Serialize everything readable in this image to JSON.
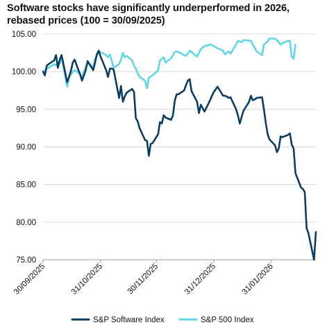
{
  "chart_data": {
    "type": "line",
    "title": "Software stocks have significantly underperformed in 2026, rebased prices (100 = 30/09/2025)",
    "xlabel": "",
    "ylabel": "",
    "ylim": [
      75,
      105
    ],
    "y_ticks": [
      "75.00",
      "80.00",
      "85.00",
      "90.00",
      "95.00",
      "100.00",
      "105.00"
    ],
    "x_tick_labels": [
      "30/09/2025",
      "31/10/2025",
      "30/11/2025",
      "31/12/2025",
      "31/01/2026"
    ],
    "x_tick_days": [
      0,
      31,
      61,
      92,
      123
    ],
    "grid": "horizontal",
    "legend_position": "bottom",
    "colors": {
      "software": "#0b3d63",
      "sp500": "#5fd6e6",
      "grid": "#d9d9d9",
      "axis": "#999999"
    },
    "series": [
      {
        "name": "S&P Software Index",
        "color": "#0b3d63",
        "values": [
          100.0,
          99.5,
          100.8,
          101.0,
          101.5,
          102.2,
          100.5,
          101.6,
          102.2,
          98.6,
          99.3,
          100.1,
          101.2,
          101.6,
          99.6,
          98.8,
          99.5,
          100.2,
          101.4,
          100.2,
          101.2,
          102.3,
          102.8,
          102.0,
          100.2,
          99.3,
          100.4,
          100.4,
          100.3,
          96.5,
          98.1,
          96.0,
          96.7,
          97.2,
          97.7,
          97.3,
          93.8,
          93.4,
          92.5,
          90.9,
          90.8,
          88.8,
          90.4,
          90.5,
          91.7,
          93.3,
          93.1,
          94.2,
          93.9,
          93.6,
          94.2,
          96.2,
          97.0,
          97.0,
          97.5,
          98.2,
          98.8,
          99.0,
          97.4,
          96.0,
          94.5,
          95.6,
          94.7,
          96.2,
          96.8,
          97.3,
          98.0,
          96.8,
          96.8,
          96.7,
          96.5,
          96.6,
          95.0,
          94.2,
          93.1,
          94.0,
          94.8,
          96.0,
          96.8,
          96.2,
          96.3,
          96.5,
          96.6,
          95.0,
          93.2,
          91.7,
          91.0,
          90.2,
          89.3,
          89.8,
          91.4,
          91.3,
          91.6,
          91.8,
          90.3,
          89.8,
          86.5,
          84.6,
          84.4,
          84.0,
          79.2,
          78.5,
          75.0,
          78.7
        ],
        "dates": [
          "2025-09-30",
          "2025-10-01",
          "2025-10-02",
          "2025-10-03",
          "2025-10-06",
          "2025-10-07",
          "2025-10-08",
          "2025-10-09",
          "2025-10-10",
          "2025-10-13",
          "2025-10-14",
          "2025-10-15",
          "2025-10-16",
          "2025-10-17",
          "2025-10-20",
          "2025-10-21",
          "2025-10-22",
          "2025-10-23",
          "2025-10-24",
          "2025-10-27",
          "2025-10-28",
          "2025-10-29",
          "2025-10-30",
          "2025-10-31",
          "2025-11-03",
          "2025-11-04",
          "2025-11-05",
          "2025-11-06",
          "2025-11-07",
          "2025-11-10",
          "2025-11-11",
          "2025-11-12",
          "2025-11-13",
          "2025-11-14",
          "2025-11-17",
          "2025-11-18",
          "2025-11-19",
          "2025-11-20",
          "2025-11-21",
          "2025-11-24",
          "2025-11-25",
          "2025-11-26",
          "2025-11-27",
          "2025-11-28",
          "2025-12-01",
          "2025-12-02",
          "2025-12-03",
          "2025-12-04",
          "2025-12-05",
          "2025-12-08",
          "2025-12-09",
          "2025-12-10",
          "2025-12-11",
          "2025-12-12",
          "2025-12-15",
          "2025-12-16",
          "2025-12-17",
          "2025-12-18",
          "2025-12-19",
          "2025-12-22",
          "2025-12-23",
          "2025-12-24",
          "2025-12-26",
          "2025-12-29",
          "2025-12-30",
          "2025-12-31",
          "2026-01-02",
          "2026-01-05",
          "2026-01-06",
          "2026-01-07",
          "2026-01-08",
          "2026-01-09",
          "2026-01-12",
          "2026-01-13",
          "2026-01-14",
          "2026-01-15",
          "2026-01-16",
          "2026-01-19",
          "2026-01-20",
          "2026-01-21",
          "2026-01-22",
          "2026-01-23",
          "2026-01-26",
          "2026-01-27",
          "2026-01-28",
          "2026-01-29",
          "2026-01-30",
          "2026-02-02",
          "2026-02-03",
          "2026-02-04",
          "2026-02-05",
          "2026-02-06",
          "2026-02-09",
          "2026-02-10",
          "2026-02-11",
          "2026-02-12",
          "2026-02-13",
          "2026-02-16",
          "2026-02-17",
          "2026-02-18",
          "2026-02-19",
          "2026-02-20",
          "2026-02-23",
          "2026-02-24"
        ]
      },
      {
        "name": "S&P 500 Index",
        "color": "#5fd6e6",
        "values": [
          100.0,
          100.2,
          100.4,
          100.5,
          101.0,
          100.8,
          101.3,
          101.1,
          101.9,
          98.0,
          99.2,
          99.6,
          100.0,
          100.2,
          99.7,
          99.2,
          100.0,
          100.6,
          101.2,
          100.6,
          101.7,
          102.2,
          102.6,
          102.6,
          102.2,
          101.9,
          102.3,
          101.5,
          100.5,
          101.0,
          101.6,
          102.5,
          101.9,
          102.1,
          101.5,
          100.8,
          100.4,
          99.8,
          99.3,
          98.8,
          97.8,
          99.2,
          99.5,
          100.2,
          101.5,
          101.7,
          101.9,
          101.2,
          101.8,
          102.2,
          102.6,
          102.7,
          102.6,
          102.2,
          102.1,
          102.4,
          102.8,
          102.6,
          102.0,
          102.5,
          103.0,
          103.4,
          103.6,
          103.5,
          103.4,
          103.1,
          102.8,
          102.3,
          102.5,
          102.7,
          102.4,
          103.6,
          104.1,
          104.0,
          103.9,
          104.2,
          104.1,
          103.6,
          103.2,
          102.7,
          102.2,
          103.6,
          103.8,
          104.0,
          104.4,
          104.4,
          104.2,
          103.9,
          103.6,
          103.8,
          104.1,
          104.1,
          102.0,
          101.7,
          103.6
        ],
        "dates": [
          "2025-09-30",
          "2025-10-01",
          "2025-10-02",
          "2025-10-03",
          "2025-10-06",
          "2025-10-07",
          "2025-10-08",
          "2025-10-09",
          "2025-10-10",
          "2025-10-13",
          "2025-10-14",
          "2025-10-15",
          "2025-10-16",
          "2025-10-17",
          "2025-10-20",
          "2025-10-21",
          "2025-10-22",
          "2025-10-23",
          "2025-10-24",
          "2025-10-27",
          "2025-10-28",
          "2025-10-29",
          "2025-10-30",
          "2025-10-31",
          "2025-11-03",
          "2025-11-04",
          "2025-11-05",
          "2025-11-06",
          "2025-11-07",
          "2025-11-10",
          "2025-11-11",
          "2025-11-12",
          "2025-11-13",
          "2025-11-14",
          "2025-11-17",
          "2025-11-18",
          "2025-11-19",
          "2025-11-20",
          "2025-11-21",
          "2025-11-24",
          "2025-11-25",
          "2025-11-26",
          "2025-11-28",
          "2025-12-01",
          "2025-12-02",
          "2025-12-03",
          "2025-12-04",
          "2025-12-05",
          "2025-12-08",
          "2025-12-09",
          "2025-12-10",
          "2025-12-11",
          "2025-12-12",
          "2025-12-15",
          "2025-12-16",
          "2025-12-17",
          "2025-12-18",
          "2025-12-19",
          "2025-12-22",
          "2025-12-23",
          "2025-12-24",
          "2025-12-26",
          "2025-12-29",
          "2025-12-30",
          "2025-12-31",
          "2026-01-02",
          "2026-01-05",
          "2026-01-06",
          "2026-01-07",
          "2026-01-08",
          "2026-01-09",
          "2026-01-12",
          "2026-01-13",
          "2026-01-14",
          "2026-01-15",
          "2026-01-16",
          "2026-01-20",
          "2026-01-21",
          "2026-01-22",
          "2026-01-23",
          "2026-01-26",
          "2026-01-27",
          "2026-01-28",
          "2026-01-29",
          "2026-01-30",
          "2026-02-02",
          "2026-02-03",
          "2026-02-04",
          "2026-02-05",
          "2026-02-06",
          "2026-02-09",
          "2026-02-10",
          "2026-02-11",
          "2026-02-12",
          "2026-02-13"
        ]
      }
    ]
  }
}
